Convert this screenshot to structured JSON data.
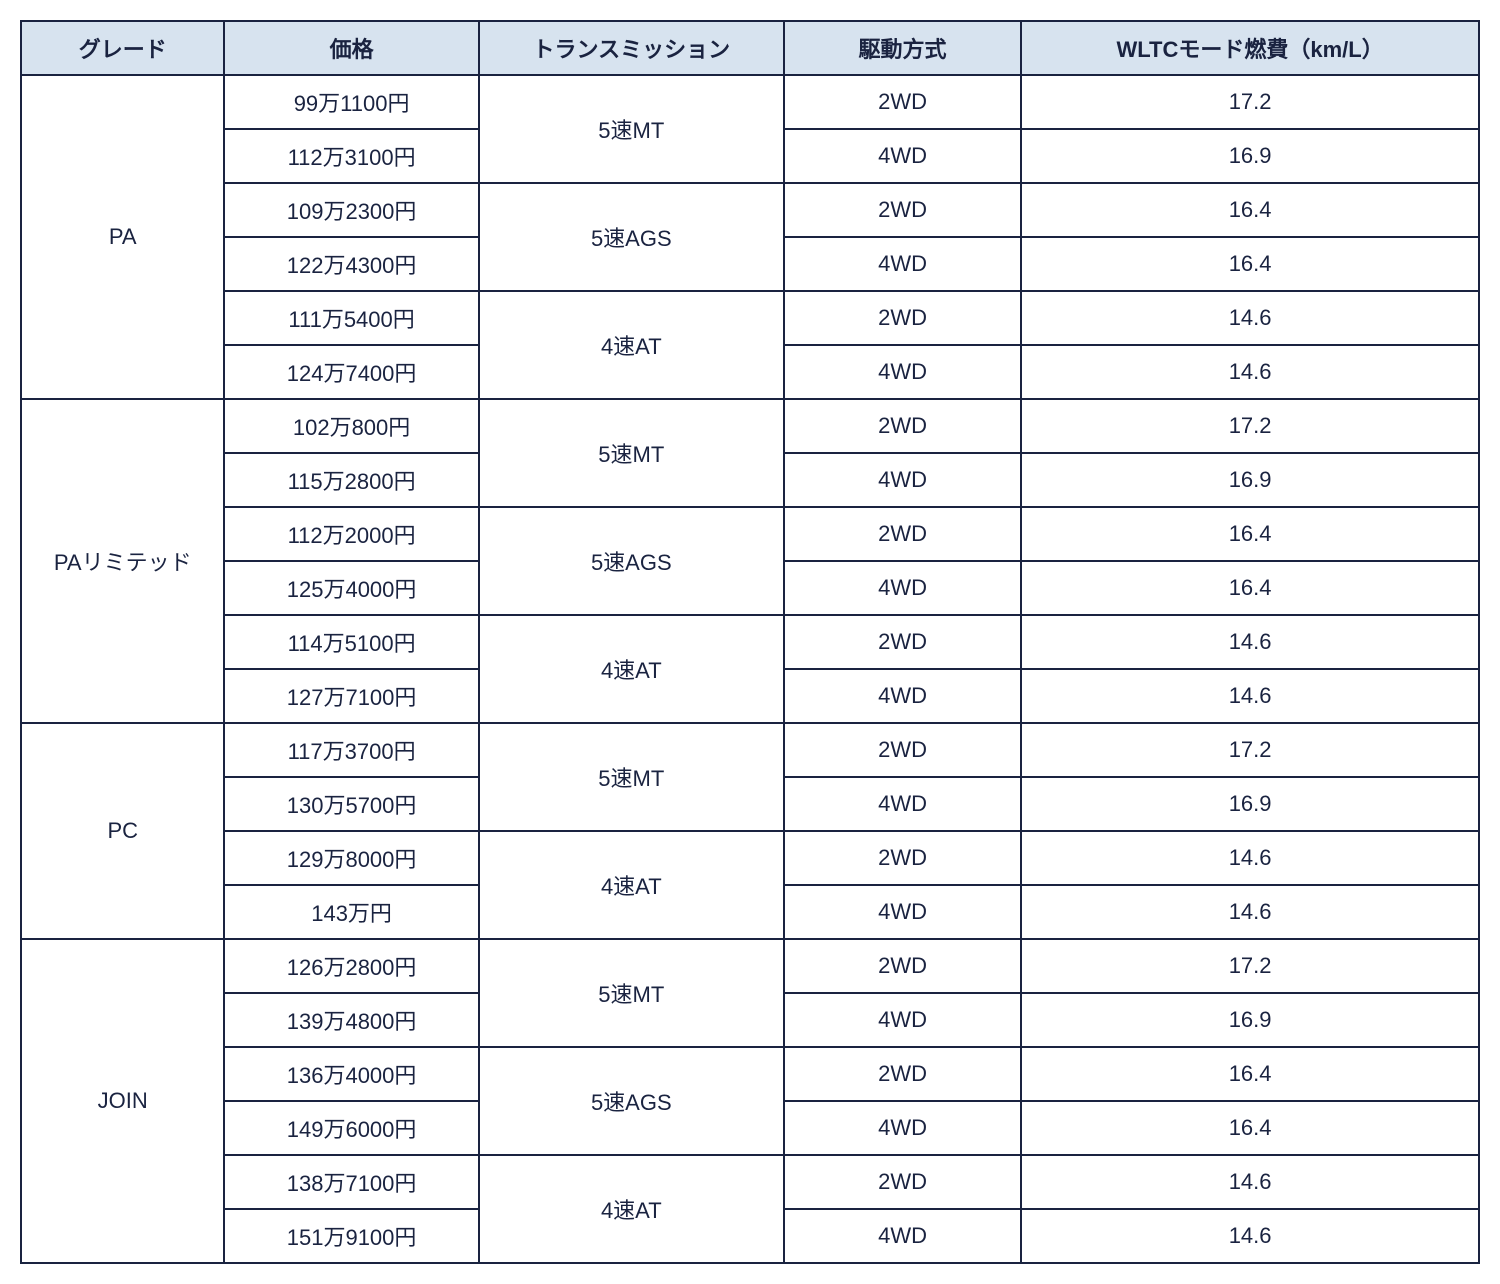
{
  "table": {
    "header_bg": "#d7e3ef",
    "border_color": "#1a2340",
    "text_color": "#1a2340",
    "columns": [
      {
        "key": "grade",
        "label": "グレード"
      },
      {
        "key": "price",
        "label": "価格"
      },
      {
        "key": "transmission",
        "label": "トランスミッション"
      },
      {
        "key": "drive",
        "label": "駆動方式"
      },
      {
        "key": "fuel",
        "label": "WLTCモード燃費（km/L）"
      }
    ],
    "grades": [
      {
        "name": "PA",
        "transmissions": [
          {
            "label": "5速MT",
            "rows": [
              {
                "price": "99万1100円",
                "drive": "2WD",
                "fuel": "17.2"
              },
              {
                "price": "112万3100円",
                "drive": "4WD",
                "fuel": "16.9"
              }
            ]
          },
          {
            "label": "5速AGS",
            "rows": [
              {
                "price": "109万2300円",
                "drive": "2WD",
                "fuel": "16.4"
              },
              {
                "price": "122万4300円",
                "drive": "4WD",
                "fuel": "16.4"
              }
            ]
          },
          {
            "label": "4速AT",
            "rows": [
              {
                "price": "111万5400円",
                "drive": "2WD",
                "fuel": "14.6"
              },
              {
                "price": "124万7400円",
                "drive": "4WD",
                "fuel": "14.6"
              }
            ]
          }
        ]
      },
      {
        "name": "PAリミテッド",
        "transmissions": [
          {
            "label": "5速MT",
            "rows": [
              {
                "price": "102万800円",
                "drive": "2WD",
                "fuel": "17.2"
              },
              {
                "price": "115万2800円",
                "drive": "4WD",
                "fuel": "16.9"
              }
            ]
          },
          {
            "label": "5速AGS",
            "rows": [
              {
                "price": "112万2000円",
                "drive": "2WD",
                "fuel": "16.4"
              },
              {
                "price": "125万4000円",
                "drive": "4WD",
                "fuel": "16.4"
              }
            ]
          },
          {
            "label": "4速AT",
            "rows": [
              {
                "price": "114万5100円",
                "drive": "2WD",
                "fuel": "14.6"
              },
              {
                "price": "127万7100円",
                "drive": "4WD",
                "fuel": "14.6"
              }
            ]
          }
        ]
      },
      {
        "name": "PC",
        "transmissions": [
          {
            "label": "5速MT",
            "rows": [
              {
                "price": "117万3700円",
                "drive": "2WD",
                "fuel": "17.2"
              },
              {
                "price": "130万5700円",
                "drive": "4WD",
                "fuel": "16.9"
              }
            ]
          },
          {
            "label": "4速AT",
            "rows": [
              {
                "price": "129万8000円",
                "drive": "2WD",
                "fuel": "14.6"
              },
              {
                "price": "143万円",
                "drive": "4WD",
                "fuel": "14.6"
              }
            ]
          }
        ]
      },
      {
        "name": "JOIN",
        "transmissions": [
          {
            "label": "5速MT",
            "rows": [
              {
                "price": "126万2800円",
                "drive": "2WD",
                "fuel": "17.2"
              },
              {
                "price": "139万4800円",
                "drive": "4WD",
                "fuel": "16.9"
              }
            ]
          },
          {
            "label": "5速AGS",
            "rows": [
              {
                "price": "136万4000円",
                "drive": "2WD",
                "fuel": "16.4"
              },
              {
                "price": "149万6000円",
                "drive": "4WD",
                "fuel": "16.4"
              }
            ]
          },
          {
            "label": "4速AT",
            "rows": [
              {
                "price": "138万7100円",
                "drive": "2WD",
                "fuel": "14.6"
              },
              {
                "price": "151万9100円",
                "drive": "4WD",
                "fuel": "14.6"
              }
            ]
          }
        ]
      }
    ]
  }
}
